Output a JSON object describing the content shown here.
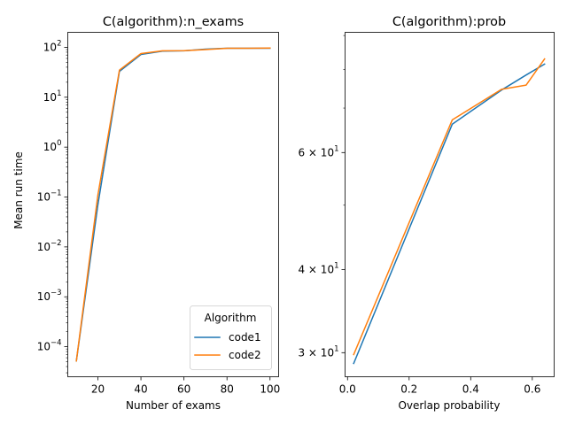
{
  "colors": {
    "code1": "#1f77b4",
    "code2": "#ff7f0e"
  },
  "chart_data": [
    {
      "type": "line",
      "title": "C(algorithm):n_exams",
      "xlabel": "Number of exams",
      "ylabel": "Mean run time",
      "xlim": [
        6,
        104
      ],
      "ylim": [
        2.5e-05,
        200
      ],
      "yscale": "log",
      "xticks": [
        20,
        40,
        60,
        80,
        100
      ],
      "xtick_labels": [
        "20",
        "40",
        "60",
        "80",
        "100"
      ],
      "yticks": [
        0.0001,
        0.001,
        0.01,
        0.1,
        1,
        10,
        100
      ],
      "ytick_labels": [
        {
          "base": "10",
          "exp": "−4"
        },
        {
          "base": "10",
          "exp": "−3"
        },
        {
          "base": "10",
          "exp": "−2"
        },
        {
          "base": "10",
          "exp": "−1"
        },
        {
          "base": "10",
          "exp": "0"
        },
        {
          "base": "10",
          "exp": "1"
        },
        {
          "base": "10",
          "exp": "2"
        }
      ],
      "legend": {
        "title": "Algorithm",
        "placement": "lower-right"
      },
      "series": [
        {
          "name": "code1",
          "x": [
            10,
            20,
            30,
            40,
            50,
            60,
            70,
            80,
            90,
            100
          ],
          "y": [
            5.2e-05,
            0.07,
            33,
            72,
            84,
            85,
            92,
            96,
            96,
            96
          ]
        },
        {
          "name": "code2",
          "x": [
            10,
            20,
            30,
            40,
            50,
            60,
            70,
            80,
            90,
            100
          ],
          "y": [
            5.2e-05,
            0.11,
            35,
            75,
            85,
            86,
            90,
            96,
            96,
            97
          ]
        }
      ]
    },
    {
      "type": "line",
      "title": "C(algorithm):prob",
      "xlabel": "Overlap probability",
      "ylabel": "",
      "xlim": [
        -0.008,
        0.671
      ],
      "ylim": [
        27.6,
        91
      ],
      "yscale": "log",
      "xticks": [
        0.0,
        0.2,
        0.4,
        0.6
      ],
      "xtick_labels": [
        "0.0",
        "0.2",
        "0.4",
        "0.6"
      ],
      "yticks": [
        30,
        40,
        60
      ],
      "ytick_labels": [
        {
          "base": "3 × 10",
          "exp": "1"
        },
        {
          "base": "4 × 10",
          "exp": "1"
        },
        {
          "base": "6 × 10",
          "exp": "1"
        }
      ],
      "yminor": [
        50,
        70,
        80,
        90
      ],
      "series": [
        {
          "name": "code1",
          "x": [
            0.02,
            0.34,
            0.5,
            0.58,
            0.64
          ],
          "y": [
            28.9,
            66.2,
            74.5,
            78.5,
            81.5
          ]
        },
        {
          "name": "code2",
          "x": [
            0.02,
            0.34,
            0.5,
            0.58,
            0.64
          ],
          "y": [
            29.8,
            67.2,
            74.7,
            75.8,
            83.0
          ]
        }
      ]
    }
  ]
}
